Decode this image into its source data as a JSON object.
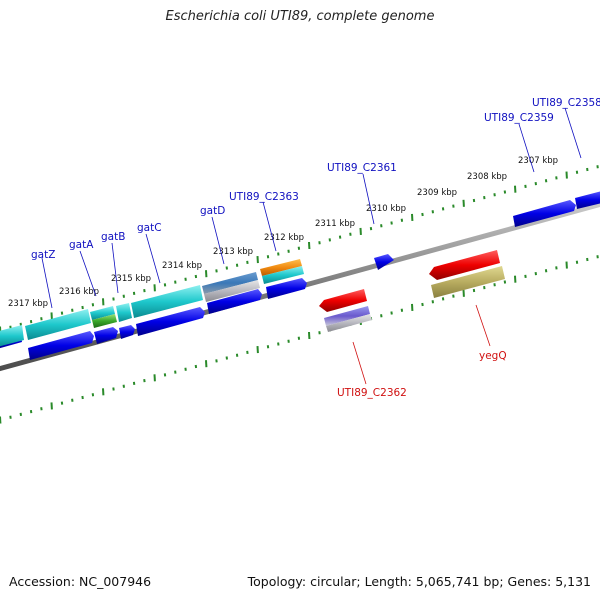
{
  "title": "Escherichia coli UTI89, complete genome",
  "footer": {
    "accession": "Accession: NC_007946",
    "topology": "Topology: circular; Length: 5,065,741 bp; Genes: 5,131"
  },
  "colors": {
    "backbone": "#8a8a8a",
    "tick": "#2a8a2a",
    "forward_label": "#1010c0",
    "reverse_label": "#d01010"
  },
  "kbp_labels": [
    "2317 kbp",
    "2316 kbp",
    "2315 kbp",
    "2314 kbp",
    "2313 kbp",
    "2312 kbp",
    "2311 kbp",
    "2310 kbp",
    "2309 kbp",
    "2308 kbp",
    "2307 kbp"
  ],
  "forward_labels": [
    "gatZ",
    "gatA",
    "gatB",
    "gatC",
    "gatD",
    "UTI89_C2363",
    "UTI89_C2361",
    "UTI89_C2359",
    "UTI89_C2358"
  ],
  "reverse_labels": [
    "UTI89_C2362",
    "yegQ"
  ]
}
